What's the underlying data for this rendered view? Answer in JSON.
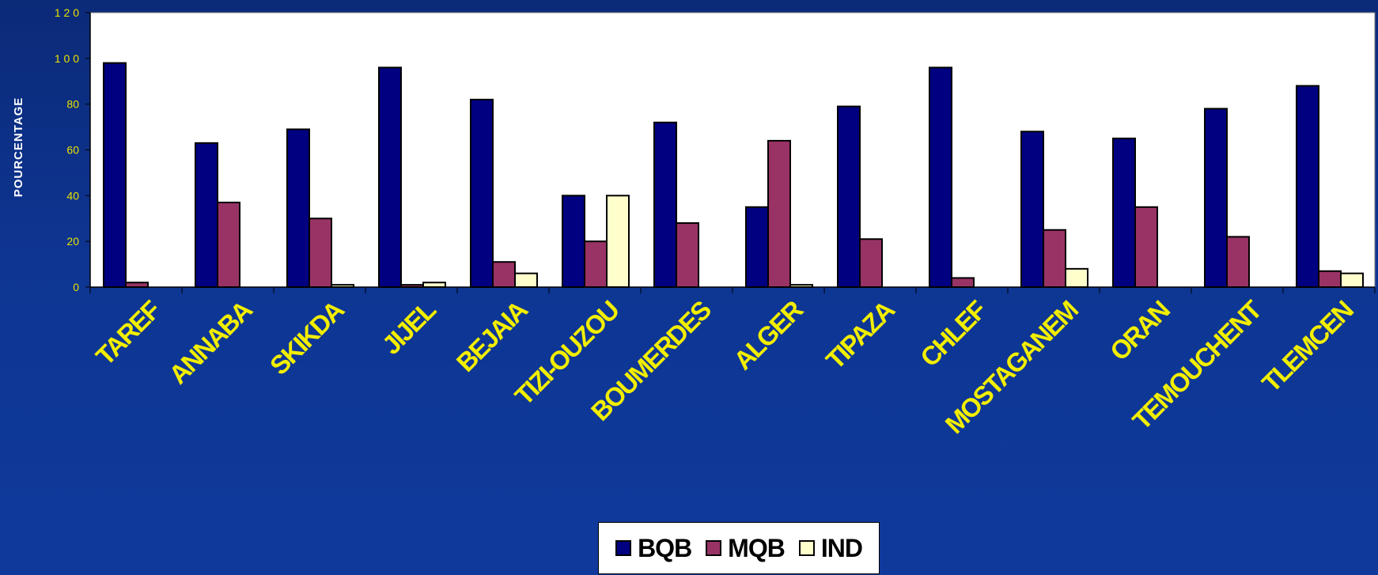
{
  "chart_data": {
    "type": "bar",
    "title": "",
    "xlabel": "",
    "ylabel": "POURCENTAGE",
    "ylim": [
      0,
      120
    ],
    "yticks": [
      0,
      20,
      40,
      60,
      80,
      100,
      120
    ],
    "grid": false,
    "legend_position": "bottom-center",
    "categories": [
      "TAREF",
      "ANNABA",
      "SKIKDA",
      "JIJEL",
      "BEJAIA",
      "TIZI-OUZOU",
      "BOUMERDES",
      "ALGER",
      "TIPAZA",
      "CHLEF",
      "MOSTAGANEM",
      "ORAN",
      "TEMOUCHENT",
      "TLEMCEN"
    ],
    "series": [
      {
        "name": "BQB",
        "color": "#000080",
        "values": [
          98,
          63,
          69,
          96,
          82,
          40,
          72,
          35,
          79,
          96,
          68,
          65,
          78,
          88
        ]
      },
      {
        "name": "MQB",
        "color": "#993366",
        "values": [
          2,
          37,
          30,
          1,
          11,
          20,
          28,
          64,
          21,
          4,
          25,
          35,
          22,
          7
        ]
      },
      {
        "name": "IND",
        "color": "#ffffcc",
        "values": [
          0,
          0,
          1,
          2,
          6,
          40,
          0,
          1,
          0,
          0,
          8,
          0,
          0,
          6
        ]
      }
    ]
  }
}
